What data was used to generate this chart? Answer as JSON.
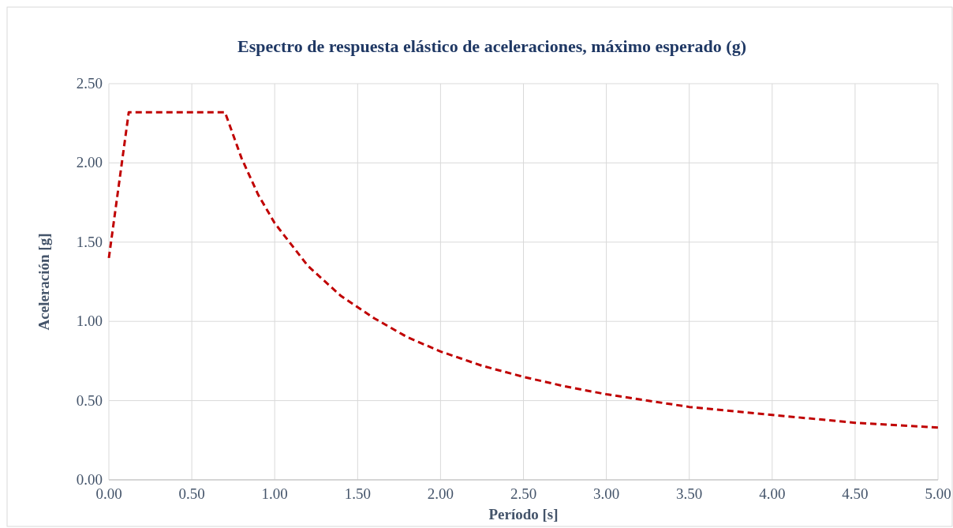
{
  "chart_data": {
    "type": "line",
    "title": "Espectro de respuesta elástico de aceleraciones, máximo esperado (g)",
    "xlabel": "Período [s]",
    "ylabel": "Aceleración [g]",
    "x": [
      0,
      0.12,
      0.7,
      0.8,
      0.9,
      1.0,
      1.2,
      1.4,
      1.6,
      1.8,
      2.0,
      2.25,
      2.5,
      2.75,
      3.0,
      3.5,
      4.0,
      4.5,
      5.0
    ],
    "series": [
      {
        "color": "#c00000",
        "values": [
          1.4,
          2.32,
          2.32,
          2.03,
          1.8,
          1.62,
          1.35,
          1.16,
          1.02,
          0.9,
          0.81,
          0.72,
          0.65,
          0.59,
          0.54,
          0.46,
          0.41,
          0.36,
          0.33
        ]
      }
    ],
    "xlim": [
      0,
      5
    ],
    "xticks": [
      {
        "value": 0,
        "label": "0.00"
      },
      {
        "value": 0.5,
        "label": "0.50"
      },
      {
        "value": 1,
        "label": "1.00"
      },
      {
        "value": 1.5,
        "label": "1.50"
      },
      {
        "value": 2,
        "label": "2.00"
      },
      {
        "value": 2.5,
        "label": "2.50"
      },
      {
        "value": 3,
        "label": "3.00"
      },
      {
        "value": 3.5,
        "label": "3.50"
      },
      {
        "value": 4,
        "label": "4.00"
      },
      {
        "value": 4.5,
        "label": "4.50"
      },
      {
        "value": 5,
        "label": "5.00"
      }
    ],
    "ylim": [
      0,
      2.5
    ],
    "yticks": [
      {
        "value": 0,
        "label": "0.00"
      },
      {
        "value": 0.5,
        "label": "0.50"
      },
      {
        "value": 1,
        "label": "1.00"
      },
      {
        "value": 1.5,
        "label": "1.50"
      },
      {
        "value": 2,
        "label": "2.00"
      },
      {
        "value": 2.5,
        "label": "2.50"
      }
    ],
    "grid": true,
    "line_style": "dashed"
  }
}
